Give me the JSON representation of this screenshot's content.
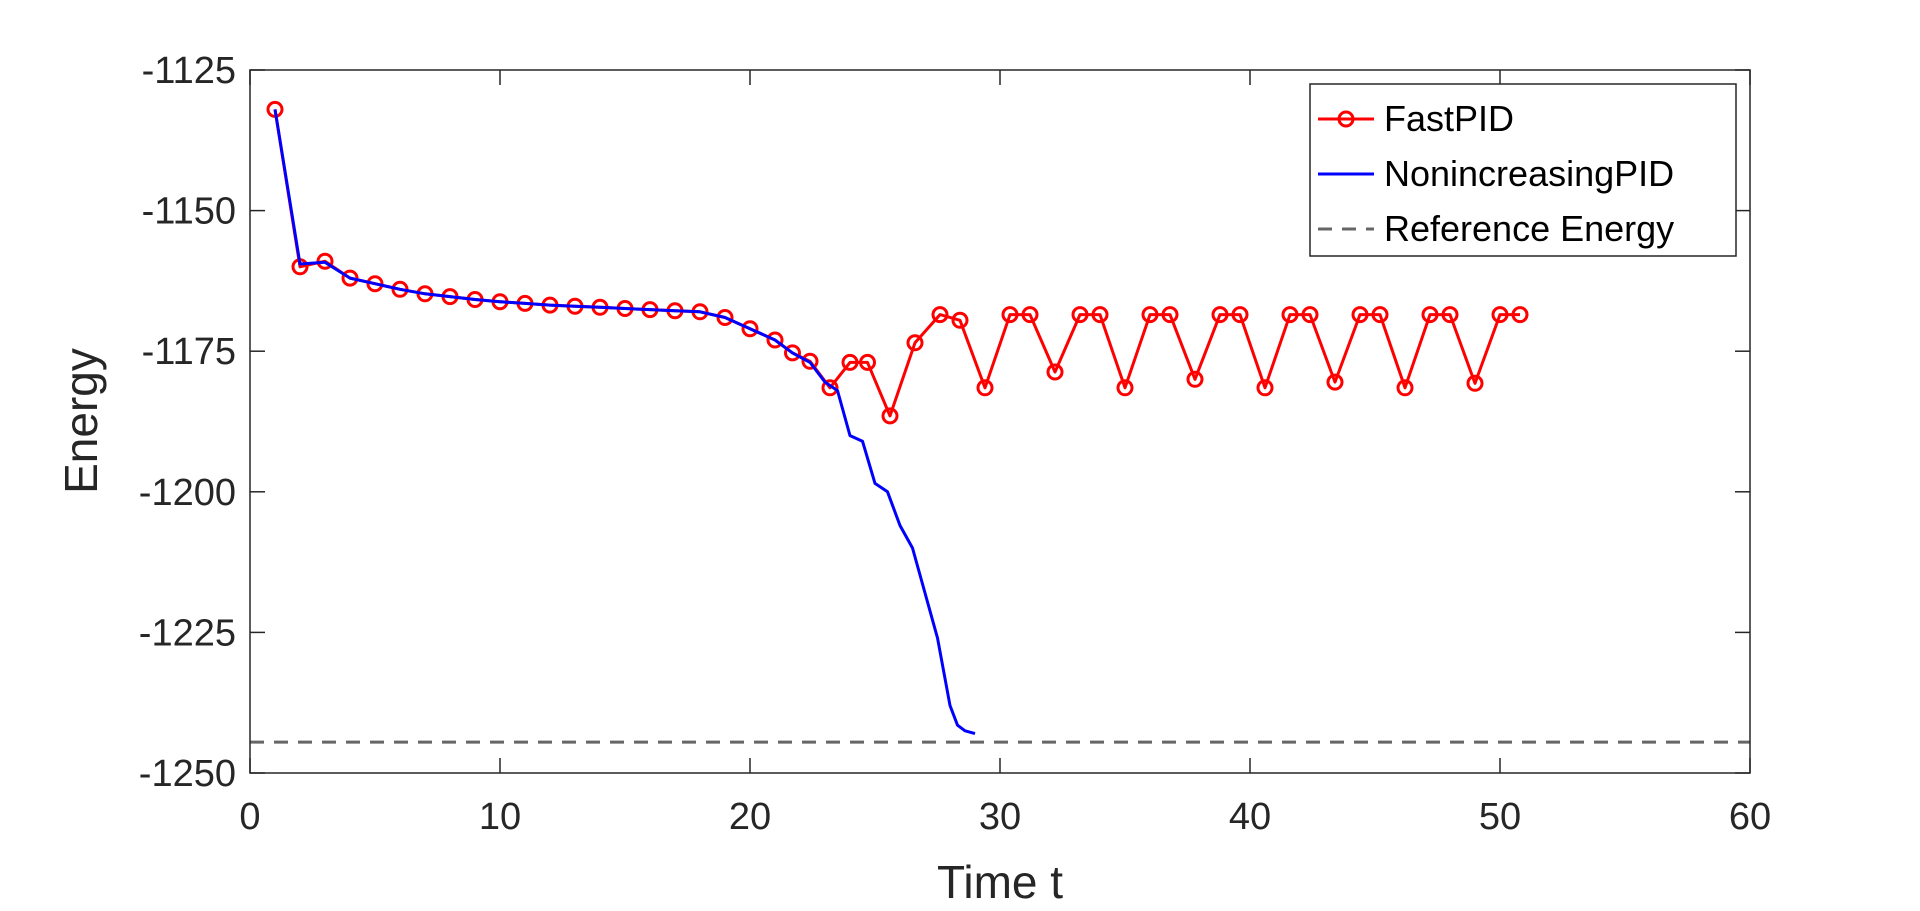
{
  "chart_data": {
    "type": "line",
    "title": "",
    "xlabel": "Time t",
    "ylabel": "Energy",
    "xlim": [
      0,
      60
    ],
    "ylim": [
      -1250,
      -1125
    ],
    "xticks": [
      0,
      10,
      20,
      30,
      40,
      50,
      60
    ],
    "yticks": [
      -1250,
      -1225,
      -1200,
      -1175,
      -1150,
      -1125
    ],
    "xtick_labels": [
      "0",
      "10",
      "20",
      "30",
      "40",
      "50",
      "60"
    ],
    "ytick_labels": [
      "-1250",
      "-1225",
      "-1200",
      "-1175",
      "-1150",
      "-1125"
    ],
    "grid": false,
    "legend_position": "top-right",
    "series": [
      {
        "name": "FastPID",
        "color": "#ff0000",
        "marker": "circle",
        "x": [
          1,
          2,
          3,
          4,
          5,
          6,
          7,
          8,
          9,
          10,
          11,
          12,
          13,
          14,
          15,
          16,
          17,
          18,
          19,
          20,
          21,
          21.7,
          22.4,
          23.2,
          24.0,
          24.7,
          25.6,
          26.6,
          27.6,
          28.4,
          29.4,
          30.4,
          31.2,
          32.2,
          33.2,
          34.0,
          35.0,
          36.0,
          36.8,
          37.8,
          38.8,
          39.6,
          40.6,
          41.6,
          42.4,
          43.4,
          44.4,
          45.2,
          46.2,
          47.2,
          48.0,
          49.0,
          50.0,
          50.8
        ],
        "y": [
          -1132,
          -1160,
          -1159,
          -1162,
          -1163,
          -1164,
          -1164.8,
          -1165.3,
          -1165.8,
          -1166.2,
          -1166.5,
          -1166.8,
          -1167.0,
          -1167.2,
          -1167.4,
          -1167.6,
          -1167.8,
          -1168.0,
          -1169.0,
          -1171,
          -1173,
          -1175.3,
          -1176.8,
          -1181.5,
          -1177,
          -1177,
          -1186.5,
          -1173.5,
          -1168.5,
          -1169.5,
          -1181.5,
          -1168.5,
          -1168.5,
          -1178.7,
          -1168.5,
          -1168.5,
          -1181.5,
          -1168.5,
          -1168.5,
          -1180,
          -1168.5,
          -1168.5,
          -1181.5,
          -1168.5,
          -1168.5,
          -1180.5,
          -1168.5,
          -1168.5,
          -1181.5,
          -1168.5,
          -1168.5,
          -1180.7,
          -1168.5,
          -1168.5
        ]
      },
      {
        "name": "NonincreasingPID",
        "color": "#0000ff",
        "marker": "none",
        "x": [
          1,
          2,
          3,
          4,
          5,
          6,
          7,
          8,
          9,
          10,
          11,
          12,
          13,
          14,
          15,
          16,
          17,
          18,
          19,
          20,
          21,
          21.7,
          22.4,
          23.0,
          23.5,
          24.0,
          24.5,
          25.0,
          25.5,
          26.0,
          26.5,
          27.0,
          27.5,
          28.0,
          28.3,
          28.6,
          29.0
        ],
        "y": [
          -1132,
          -1159.5,
          -1159.2,
          -1162,
          -1163,
          -1164,
          -1164.8,
          -1165.3,
          -1165.8,
          -1166.2,
          -1166.5,
          -1166.8,
          -1167.0,
          -1167.2,
          -1167.4,
          -1167.6,
          -1167.8,
          -1168.0,
          -1169.0,
          -1171,
          -1173,
          -1175.3,
          -1177,
          -1180.5,
          -1182,
          -1190,
          -1191,
          -1198.5,
          -1200,
          -1206,
          -1210,
          -1218,
          -1226,
          -1238,
          -1241.5,
          -1242.5,
          -1243
        ]
      },
      {
        "name": "Reference Energy",
        "color": "#666666",
        "marker": "none",
        "dashed": true,
        "x": [
          0,
          60
        ],
        "y": [
          -1244.5,
          -1244.5
        ]
      }
    ]
  }
}
